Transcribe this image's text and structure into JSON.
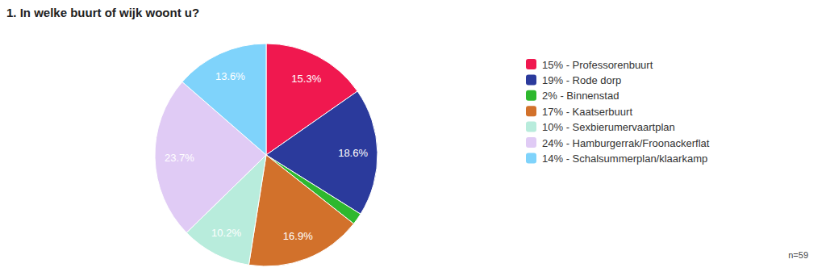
{
  "chart_data": {
    "type": "pie",
    "title": "1. In welke buurt of wijk woont u?",
    "categories": [
      "15% - Professorenbuurt",
      "19% - Rode dorp",
      "2% - Binnenstad",
      "17% - Kaatserbuurt",
      "10% - Sexbierumervaartplan",
      "24% - Hamburgerrak/Froonackerflat",
      "14% - Schalsummerplan/klaarkamp"
    ],
    "values": [
      15.3,
      18.6,
      1.7,
      16.9,
      10.2,
      23.7,
      13.6
    ],
    "value_labels": [
      "15.3%",
      "18.6%",
      null,
      "16.9%",
      "10.2%",
      "23.7%",
      "13.6%"
    ],
    "colors": [
      "#f0184f",
      "#2b3a9c",
      "#2eb82e",
      "#d2712b",
      "#b8ecdc",
      "#e0cbf5",
      "#7fd3fb"
    ],
    "data_labels": true,
    "legend": "right",
    "annotation": "n=59"
  }
}
